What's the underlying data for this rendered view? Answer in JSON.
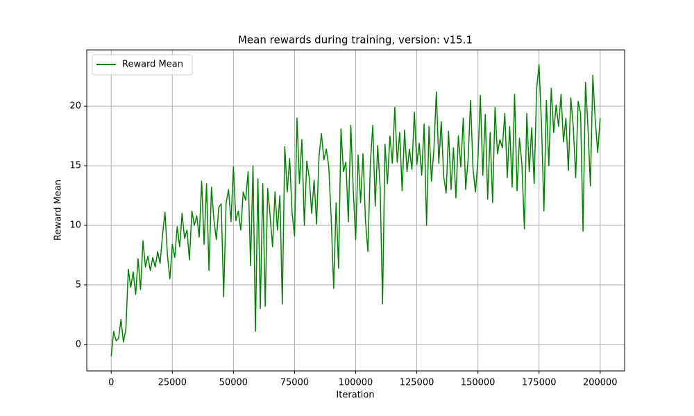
{
  "chart_data": {
    "type": "line",
    "title": "Mean rewards during training, version: v15.1",
    "x_label": "Iteration",
    "y_label": "Reward Mean",
    "x": [
      0,
      1000,
      2000,
      3000,
      4000,
      5000,
      6000,
      7000,
      8000,
      9000,
      10000,
      11000,
      12000,
      13000,
      14000,
      15000,
      16000,
      17000,
      18000,
      19000,
      20000,
      21000,
      22000,
      23000,
      24000,
      25000,
      26000,
      27000,
      28000,
      29000,
      30000,
      31000,
      32000,
      33000,
      34000,
      35000,
      36000,
      37000,
      38000,
      39000,
      40000,
      41000,
      42000,
      43000,
      44000,
      45000,
      46000,
      47000,
      48000,
      49000,
      50000,
      51000,
      52000,
      53000,
      54000,
      55000,
      56000,
      57000,
      58000,
      59000,
      60000,
      61000,
      62000,
      63000,
      64000,
      65000,
      66000,
      67000,
      68000,
      69000,
      70000,
      71000,
      72000,
      73000,
      74000,
      75000,
      76000,
      77000,
      78000,
      79000,
      80000,
      81000,
      82000,
      83000,
      84000,
      85000,
      86000,
      87000,
      88000,
      89000,
      90000,
      91000,
      92000,
      93000,
      94000,
      95000,
      96000,
      97000,
      98000,
      99000,
      100000,
      101000,
      102000,
      103000,
      104000,
      105000,
      106000,
      107000,
      108000,
      109000,
      110000,
      111000,
      112000,
      113000,
      114000,
      115000,
      116000,
      117000,
      118000,
      119000,
      120000,
      121000,
      122000,
      123000,
      124000,
      125000,
      126000,
      127000,
      128000,
      129000,
      130000,
      131000,
      132000,
      133000,
      134000,
      135000,
      136000,
      137000,
      138000,
      139000,
      140000,
      141000,
      142000,
      143000,
      144000,
      145000,
      146000,
      147000,
      148000,
      149000,
      150000,
      151000,
      152000,
      153000,
      154000,
      155000,
      156000,
      157000,
      158000,
      159000,
      160000,
      161000,
      162000,
      163000,
      164000,
      165000,
      166000,
      167000,
      168000,
      169000,
      170000,
      171000,
      172000,
      173000,
      174000,
      175000,
      176000,
      177000,
      178000,
      179000,
      180000,
      181000,
      182000,
      183000,
      184000,
      185000,
      186000,
      187000,
      188000,
      189000,
      190000,
      191000,
      192000,
      193000,
      194000,
      195000,
      196000,
      197000,
      198000,
      199000,
      200000
    ],
    "series": [
      {
        "name": "Reward Mean",
        "color": "#008000",
        "values": [
          -1,
          1.1,
          0.3,
          0.5,
          2.1,
          0.2,
          1.3,
          6.3,
          4.8,
          6.1,
          4.2,
          7.2,
          4.6,
          8.7,
          6.5,
          7.4,
          6.2,
          7.3,
          6.5,
          7.8,
          6.8,
          9.2,
          11.1,
          7.5,
          5.5,
          8.4,
          7.3,
          9.9,
          8.2,
          11.0,
          8.9,
          9.6,
          7.1,
          11.2,
          10.0,
          10.8,
          9.0,
          13.7,
          8.4,
          13.5,
          6.2,
          13.2,
          10.5,
          8.8,
          11.5,
          11.8,
          4.0,
          11.9,
          13.0,
          10.3,
          14.9,
          10.4,
          11.2,
          9.6,
          12.8,
          12.1,
          14.5,
          6.6,
          15.0,
          1.1,
          13.9,
          3.0,
          13.5,
          3.2,
          13.1,
          10.8,
          8.2,
          12.8,
          9.6,
          12.5,
          3.4,
          16.6,
          12.8,
          15.6,
          11.0,
          9.1,
          19.0,
          13.5,
          17.2,
          10.0,
          15.4,
          14.0,
          11.0,
          13.8,
          10.1,
          15.8,
          17.7,
          15.5,
          16.4,
          14.9,
          10.5,
          4.7,
          11.9,
          6.4,
          18.1,
          14.5,
          15.3,
          10.3,
          18.4,
          13.0,
          8.8,
          15.9,
          11.9,
          16.0,
          10.4,
          7.8,
          15.2,
          18.4,
          11.6,
          16.7,
          13.2,
          3.4,
          16.8,
          13.5,
          17.5,
          15.2,
          19.9,
          15.3,
          17.8,
          12.9,
          18.0,
          14.5,
          16.4,
          14.7,
          19.5,
          15.1,
          16.9,
          14.2,
          18.5,
          10.0,
          18.3,
          13.7,
          16.4,
          21.2,
          15.2,
          18.7,
          14.1,
          12.7,
          17.9,
          13.0,
          16.5,
          12.3,
          17.5,
          14.9,
          19.0,
          13.0,
          15.6,
          20.5,
          14.7,
          12.8,
          15.5,
          20.9,
          14.2,
          19.3,
          12.2,
          17.8,
          11.9,
          19.9,
          16.0,
          17.2,
          16.5,
          19.4,
          14.0,
          18.3,
          13.2,
          21.0,
          12.9,
          17.3,
          15.1,
          9.7,
          19.4,
          14.5,
          18.2,
          13.5,
          21.4,
          23.5,
          18.5,
          11.2,
          20.5,
          15.0,
          21.5,
          17.8,
          20.1,
          18.3,
          21.0,
          17.0,
          19.0,
          14.6,
          20.7,
          18.3,
          14.0,
          20.4,
          19.4,
          9.5,
          22.0,
          18.3,
          13.3,
          22.6,
          18.8,
          16.1,
          19.0
        ]
      }
    ],
    "xlim": [
      -10000,
      210000
    ],
    "ylim": [
      -2.225,
      24.725
    ],
    "xticks": [
      0,
      25000,
      50000,
      75000,
      100000,
      125000,
      150000,
      175000,
      200000
    ],
    "yticks": [
      0,
      5,
      10,
      15,
      20
    ],
    "grid": true,
    "legend": "upper left"
  }
}
